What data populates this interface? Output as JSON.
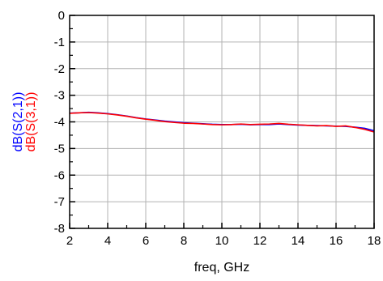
{
  "chart_data": {
    "type": "line",
    "xlabel": "freq, GHz",
    "ylabels": [
      {
        "text": "dB(S(2,1))",
        "color": "#0000ff"
      },
      {
        "text": "dB(S(3,1))",
        "color": "#ff0000"
      }
    ],
    "xlim": [
      2,
      18
    ],
    "ylim": [
      -8,
      0
    ],
    "xticks": [
      2,
      4,
      6,
      8,
      10,
      12,
      14,
      16,
      18
    ],
    "yticks": [
      0,
      -1,
      -2,
      -3,
      -4,
      -5,
      -6,
      -7,
      -8
    ],
    "x_minor_step": 1,
    "y_minor_step": 0.5,
    "grid": true,
    "grid_color": "#b3b3b3",
    "series": [
      {
        "name": "dB(S(2,1))",
        "color": "#0000ff",
        "x": [
          2.0,
          2.5,
          3.0,
          3.5,
          4.0,
          4.5,
          5.0,
          5.5,
          6.0,
          6.5,
          7.0,
          7.5,
          8.0,
          8.5,
          9.0,
          9.5,
          10.0,
          10.5,
          11.0,
          11.5,
          12.0,
          12.5,
          13.0,
          13.5,
          14.0,
          14.5,
          15.0,
          15.5,
          16.0,
          16.5,
          17.0,
          17.5,
          18.0
        ],
        "y": [
          -3.67,
          -3.66,
          -3.64,
          -3.66,
          -3.69,
          -3.73,
          -3.78,
          -3.84,
          -3.89,
          -3.93,
          -3.97,
          -4.0,
          -4.03,
          -4.05,
          -4.07,
          -4.09,
          -4.1,
          -4.1,
          -4.09,
          -4.11,
          -4.1,
          -4.1,
          -4.08,
          -4.1,
          -4.12,
          -4.13,
          -4.14,
          -4.15,
          -4.16,
          -4.17,
          -4.2,
          -4.24,
          -4.33
        ]
      },
      {
        "name": "dB(S(3,1))",
        "color": "#ff0000",
        "x": [
          2.0,
          2.5,
          3.0,
          3.5,
          4.0,
          4.5,
          5.0,
          5.5,
          6.0,
          6.5,
          7.0,
          7.5,
          8.0,
          8.5,
          9.0,
          9.5,
          10.0,
          10.5,
          11.0,
          11.5,
          12.0,
          12.5,
          13.0,
          13.5,
          14.0,
          14.5,
          15.0,
          15.5,
          16.0,
          16.5,
          17.0,
          17.5,
          18.0
        ],
        "y": [
          -3.68,
          -3.66,
          -3.65,
          -3.67,
          -3.7,
          -3.74,
          -3.79,
          -3.85,
          -3.9,
          -3.94,
          -3.99,
          -4.02,
          -4.05,
          -4.06,
          -4.08,
          -4.1,
          -4.11,
          -4.1,
          -4.08,
          -4.1,
          -4.09,
          -4.08,
          -4.06,
          -4.09,
          -4.11,
          -4.13,
          -4.15,
          -4.14,
          -4.17,
          -4.15,
          -4.21,
          -4.28,
          -4.38
        ]
      }
    ]
  }
}
